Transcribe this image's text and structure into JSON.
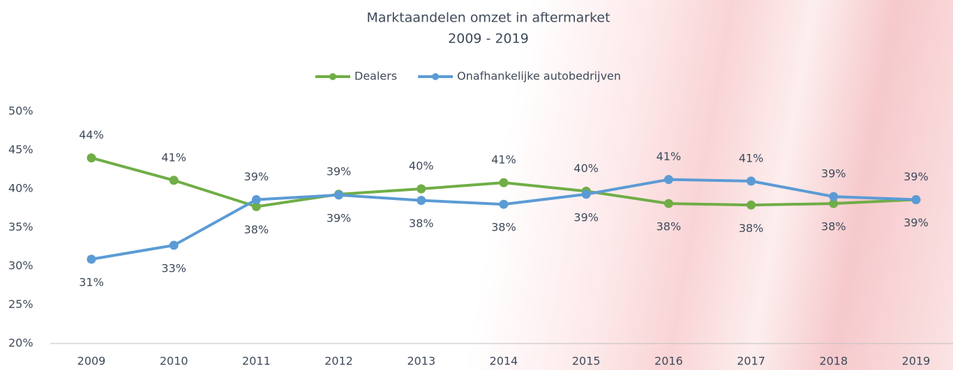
{
  "chart_data": {
    "type": "line",
    "title": "Marktaandelen omzet in aftermarket",
    "subtitle": "2009 - 2019",
    "categories": [
      "2009",
      "2010",
      "2011",
      "2012",
      "2013",
      "2014",
      "2015",
      "2016",
      "2017",
      "2018",
      "2019"
    ],
    "series": [
      {
        "name": "Dealers",
        "color": "#70ad47",
        "values": [
          44.0,
          41.1,
          37.7,
          39.3,
          40.0,
          40.8,
          39.7,
          38.1,
          37.9,
          38.1,
          38.6
        ],
        "value_labels": [
          "44%",
          "41%",
          "38%",
          "39%",
          "40%",
          "41%",
          "40%",
          "38%",
          "38%",
          "38%",
          "39%"
        ]
      },
      {
        "name": "Onafhankelijke autobedrijven",
        "color": "#5b9bd5",
        "values": [
          30.9,
          32.7,
          38.6,
          39.2,
          38.5,
          38.0,
          39.3,
          41.2,
          41.0,
          39.0,
          38.6
        ],
        "value_labels": [
          "31%",
          "33%",
          "39%",
          "39%",
          "38%",
          "38%",
          "39%",
          "41%",
          "41%",
          "39%",
          "39%"
        ]
      }
    ],
    "ylim": [
      20,
      50
    ],
    "yticks": [
      {
        "value": 20,
        "label": "20%"
      },
      {
        "value": 25,
        "label": "25%"
      },
      {
        "value": 30,
        "label": "30%"
      },
      {
        "value": 35,
        "label": "35%"
      },
      {
        "value": 40,
        "label": "40%"
      },
      {
        "value": 45,
        "label": "45%"
      },
      {
        "value": 50,
        "label": "50%"
      }
    ],
    "grid": false,
    "legend": "top"
  }
}
